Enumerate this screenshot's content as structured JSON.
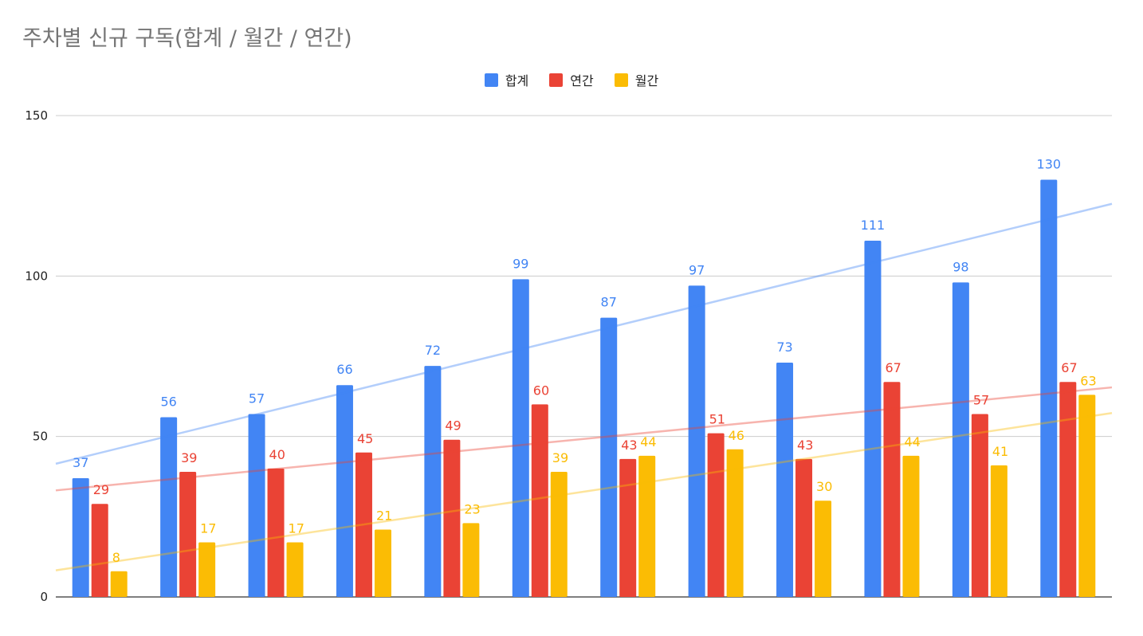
{
  "chart_data": {
    "type": "bar",
    "title": "주차별 신규 구독(합계 / 월간 / 연간)",
    "categories": [
      "",
      "",
      "",
      "",
      "",
      "",
      "",
      "",
      "",
      "",
      "",
      ""
    ],
    "series": [
      {
        "name": "합계",
        "color": "#4285F4",
        "values": [
          37,
          56,
          57,
          66,
          72,
          99,
          87,
          97,
          73,
          111,
          98,
          130
        ],
        "trendline": [
          41.5,
          122.5
        ]
      },
      {
        "name": "연간",
        "color": "#EA4335",
        "values": [
          29,
          39,
          40,
          45,
          49,
          60,
          43,
          51,
          43,
          67,
          57,
          67
        ],
        "trendline": [
          33.2,
          65.3
        ]
      },
      {
        "name": "월간",
        "color": "#FBBC04",
        "values": [
          8,
          17,
          17,
          21,
          23,
          39,
          44,
          46,
          30,
          44,
          41,
          63
        ],
        "trendline": [
          8.3,
          57.3
        ]
      }
    ],
    "yticks": [
      0,
      50,
      100,
      150
    ],
    "ylim": [
      0,
      150
    ],
    "xlabel": "",
    "ylabel": "",
    "grid": true,
    "legend_position": "top"
  }
}
